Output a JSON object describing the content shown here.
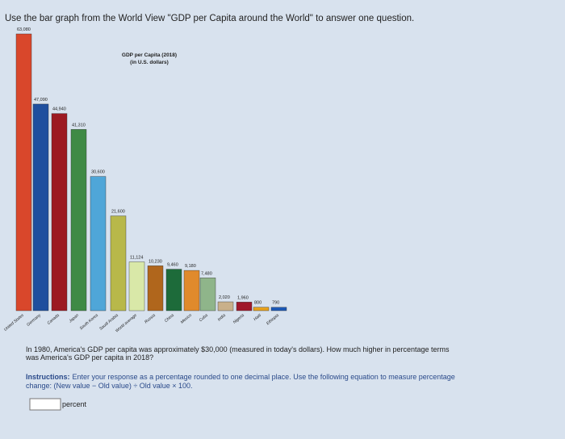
{
  "header": {
    "instruction": "Use the bar graph from the World View \"GDP per Capita around the World\" to answer one question."
  },
  "chart_data": {
    "type": "bar",
    "title": "GDP per Capita (2018)",
    "subtitle": "(in U.S. dollars)",
    "categories": [
      "United States",
      "Germany",
      "Canada",
      "Japan",
      "South Korea",
      "Saudi Arabia",
      "World average",
      "Russia",
      "China",
      "Mexico",
      "Cuba",
      "India",
      "Nigeria",
      "Haiti",
      "Ethiopia"
    ],
    "values": [
      63080,
      47090,
      44940,
      41310,
      30600,
      21600,
      11124,
      10230,
      9460,
      9180,
      7480,
      2020,
      1960,
      800,
      790
    ],
    "value_labels": [
      "63,080",
      "47,090",
      "44,940",
      "41,310",
      "30,600",
      "21,600",
      "11,124",
      "10,230",
      "9,460",
      "9,180",
      "7,480",
      "2,020",
      "1,960",
      "800",
      "790"
    ],
    "colors": [
      "#d9472b",
      "#1f4f9e",
      "#9c1a22",
      "#3f8a45",
      "#4fa6d8",
      "#b8b84a",
      "#d9e8a8",
      "#b0661c",
      "#1d6b3a",
      "#e08a2c",
      "#8fb58a",
      "#c9b08a",
      "#a0182a",
      "#e6a11c",
      "#1c58b5"
    ]
  },
  "question": {
    "lines": [
      "In 1980, America's GDP per capita was approximately $30,000 (measured in today's dollars). How much higher in percentage terms",
      "was America's GDP per capita in 2018?"
    ]
  },
  "instructions": {
    "label": "Instructions:",
    "lines": [
      "Enter your response as a percentage rounded to one decimal place. Use the following equation to measure percentage",
      "change: (New value − Old value) ÷ Old value × 100."
    ]
  },
  "answer": {
    "unit": "percent"
  }
}
